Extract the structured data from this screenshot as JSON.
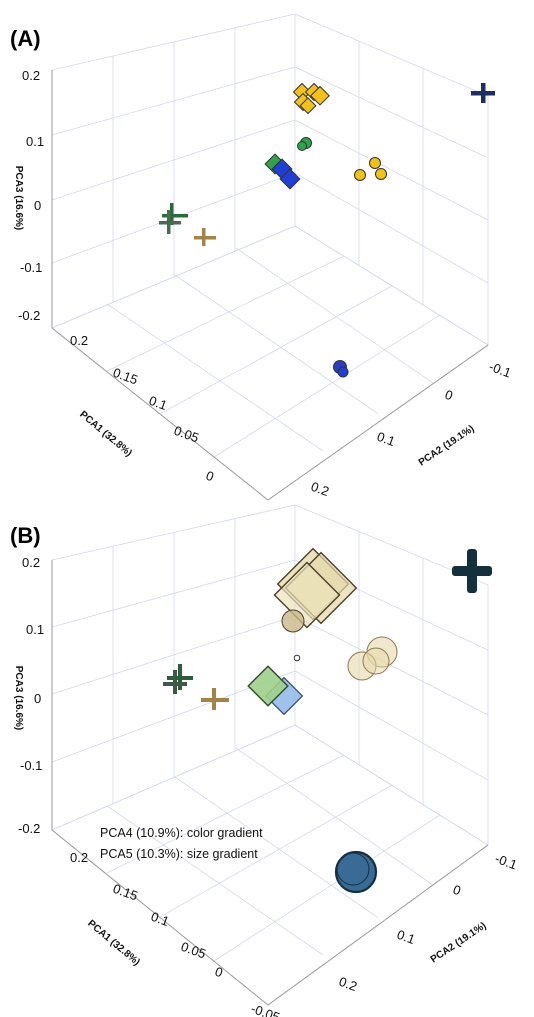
{
  "colors": {
    "yellow": "#f2c21b",
    "green": "#2ea34a",
    "blue": "#1f3fd6",
    "navy": "#1c2f5e",
    "tan": "#c7a867",
    "beige": "#e6d9aa",
    "light_green": "#9fd08a",
    "light_blue": "#8fb6e6",
    "dark_teal": "#14303d",
    "steel_blue": "#3a6a96"
  },
  "chart_data": [
    {
      "panel": "(A)",
      "type": "scatter",
      "projection": "3d",
      "axes": {
        "x": {
          "label": "PCA1 (32.8%)",
          "ticks": [
            "0.2",
            "0.15",
            "0.1",
            "0.05",
            "0"
          ]
        },
        "y": {
          "label": "PCA2 (19.1%)",
          "ticks": [
            "-0.1",
            "0",
            "0.1",
            "0.2"
          ]
        },
        "z": {
          "label": "PCA3 (16.6%)",
          "ticks": [
            "0.2",
            "0.1",
            "0",
            "-0.1",
            "-0.2"
          ]
        }
      },
      "grid": true,
      "points": [
        {
          "marker": "diamond",
          "color": "yellow",
          "group": "yellow-diamonds"
        },
        {
          "marker": "circle",
          "color": "yellow",
          "group": "yellow-circles"
        },
        {
          "marker": "circle",
          "color": "green",
          "group": "green-circle"
        },
        {
          "marker": "diamond",
          "color": "green",
          "group": "green-diamond"
        },
        {
          "marker": "diamond",
          "color": "blue",
          "group": "blue-diamonds"
        },
        {
          "marker": "plus",
          "color": "navy",
          "group": "navy-plus"
        },
        {
          "marker": "plus",
          "color": "green",
          "group": "green-plus"
        },
        {
          "marker": "plus",
          "color": "tan",
          "group": "tan-plus"
        },
        {
          "marker": "circle",
          "color": "blue",
          "group": "blue-circle"
        }
      ]
    },
    {
      "panel": "(B)",
      "type": "scatter",
      "projection": "3d",
      "axes": {
        "x": {
          "label": "PCA1 (32.8%)",
          "ticks": [
            "0.2",
            "0.15",
            "0.1",
            "0.05",
            "0",
            "-0.05"
          ]
        },
        "y": {
          "label": "PCA2 (19.1%)",
          "ticks": [
            "-0.1",
            "0",
            "0.1",
            "0.2"
          ]
        },
        "z": {
          "label": "PCA3 (16.6%)",
          "ticks": [
            "0.2",
            "0.1",
            "0",
            "-0.1",
            "-0.2"
          ]
        }
      },
      "grid": true,
      "annotations": [
        "PCA4 (10.9%): color gradient",
        "PCA5 (10.3%): size gradient"
      ]
    }
  ]
}
